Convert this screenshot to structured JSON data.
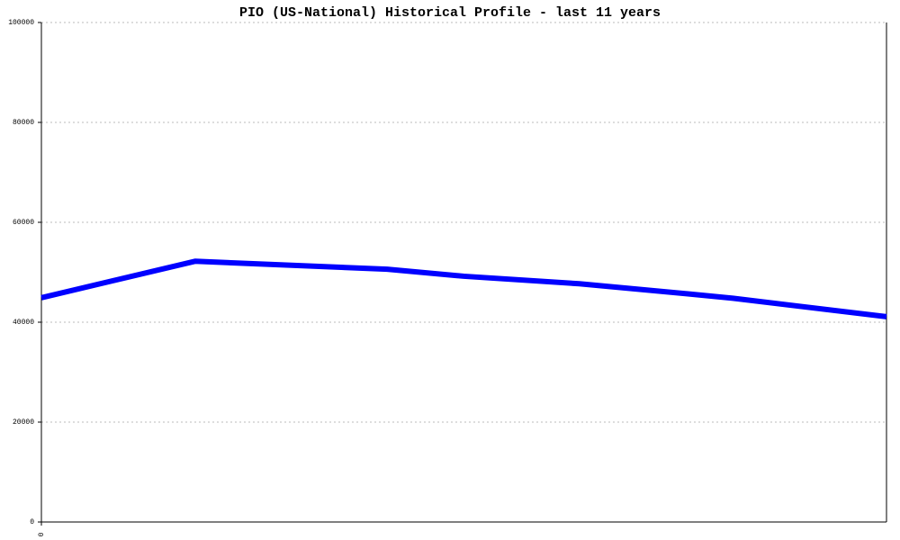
{
  "chart_data": {
    "type": "line",
    "title": "PIO (US-National) Historical Profile - last 11 years",
    "x": [
      0,
      2,
      4.5,
      5.5,
      7,
      8.4,
      9,
      11
    ],
    "series": [
      {
        "name": "PIO",
        "color": "#0000ff",
        "values": [
          44900,
          52200,
          50600,
          49200,
          47700,
          45700,
          44800,
          41100
        ]
      }
    ],
    "xlim": [
      0,
      11
    ],
    "xticks": [
      0
    ],
    "ylim": [
      0,
      100000
    ],
    "yticks": [
      0,
      20000,
      40000,
      60000,
      80000,
      100000
    ],
    "grid": true
  }
}
